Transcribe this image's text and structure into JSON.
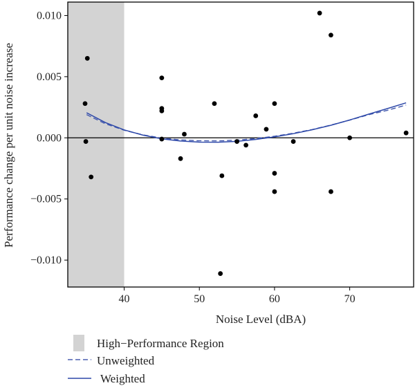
{
  "chart_data": {
    "type": "scatter",
    "xlabel": "Noise Level (dBA)",
    "ylabel": "Performance change per unit noise increase",
    "xlim": [
      32.5,
      78.5
    ],
    "ylim": [
      -0.0122,
      0.0111
    ],
    "x_ticks": [
      40,
      50,
      60,
      70
    ],
    "x_tick_labels": [
      "40",
      "50",
      "60",
      "70"
    ],
    "y_ticks": [
      -0.01,
      -0.005,
      0,
      0.005,
      0.01
    ],
    "y_tick_labels": [
      "−0.010",
      "−0.005",
      "0.000",
      "0.005",
      "0.010"
    ],
    "grid": false,
    "zero_line": 0,
    "shaded_region": {
      "name": "High−Performance Region",
      "x_start": 32.5,
      "x_end": 40,
      "color": "#d3d3d3"
    },
    "points": [
      {
        "x": 34.8,
        "y": 0.0028
      },
      {
        "x": 35.1,
        "y": 0.0065
      },
      {
        "x": 34.9,
        "y": -0.0003
      },
      {
        "x": 35.6,
        "y": -0.0032
      },
      {
        "x": 45.0,
        "y": 0.0049
      },
      {
        "x": 45.0,
        "y": 0.0024
      },
      {
        "x": 45.0,
        "y": 0.0022
      },
      {
        "x": 45.0,
        "y": -0.0001
      },
      {
        "x": 47.5,
        "y": -0.0017
      },
      {
        "x": 48.0,
        "y": 0.0003
      },
      {
        "x": 52.0,
        "y": 0.0028
      },
      {
        "x": 53.0,
        "y": -0.0031
      },
      {
        "x": 52.8,
        "y": -0.0111
      },
      {
        "x": 55.0,
        "y": -0.0003
      },
      {
        "x": 56.2,
        "y": -0.0006
      },
      {
        "x": 57.5,
        "y": 0.0018
      },
      {
        "x": 58.9,
        "y": 0.0007
      },
      {
        "x": 60.0,
        "y": 0.0028
      },
      {
        "x": 60.0,
        "y": -0.0029
      },
      {
        "x": 60.0,
        "y": -0.0044
      },
      {
        "x": 62.5,
        "y": -0.0003
      },
      {
        "x": 66.0,
        "y": 0.0102
      },
      {
        "x": 67.5,
        "y": 0.0084
      },
      {
        "x": 67.5,
        "y": -0.0044
      },
      {
        "x": 70.0,
        "y": 0.0
      },
      {
        "x": 77.5,
        "y": 0.0004
      }
    ],
    "series": [
      {
        "name": "Unweighted",
        "style": "dashed",
        "color": "#4a5fb0",
        "x": [
          35,
          37.5,
          40,
          42.5,
          45,
          47.5,
          50,
          52.5,
          55,
          57.5,
          60,
          62.5,
          65,
          67.5,
          70,
          72.5,
          75,
          77.5
        ],
        "y": [
          0.0019,
          0.00115,
          0.00062,
          0.00024,
          -2e-05,
          -0.00017,
          -0.00024,
          -0.00025,
          -0.00019,
          -6e-05,
          0.00013,
          0.00038,
          0.00068,
          0.00104,
          0.00145,
          0.00189,
          0.00225,
          0.00268
        ]
      },
      {
        "name": "Weighted",
        "style": "solid",
        "color": "#2c47a8",
        "x": [
          35,
          37.5,
          40,
          42.5,
          45,
          47.5,
          50,
          52.5,
          55,
          57.5,
          60,
          62.5,
          65,
          67.5,
          70,
          72.5,
          75,
          77.5
        ],
        "y": [
          0.00205,
          0.00125,
          0.00065,
          0.00022,
          -8e-05,
          -0.00026,
          -0.00035,
          -0.00036,
          -0.00029,
          -0.00013,
          8e-05,
          0.00034,
          0.00066,
          0.00103,
          0.00146,
          0.00193,
          0.00239,
          0.00286
        ]
      }
    ],
    "legend": {
      "placement": "bottom-left",
      "items": [
        {
          "label": "High−Performance Region",
          "kind": "box",
          "color": "#d3d3d3"
        },
        {
          "label": "Unweighted",
          "kind": "dashed-line",
          "color": "#4a5fb0"
        },
        {
          "label": "Weighted",
          "kind": "solid-line",
          "color": "#2c47a8"
        }
      ]
    }
  }
}
